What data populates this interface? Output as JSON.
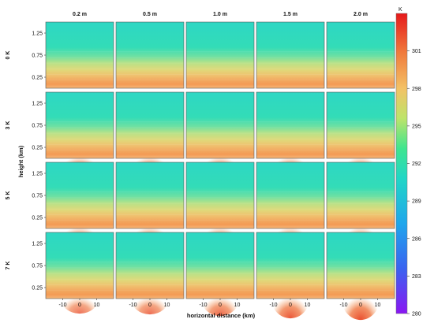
{
  "chart_data": {
    "type": "heatmap",
    "column_titles": [
      "0.2 m",
      "0.5 m",
      "1.0 m",
      "1.5 m",
      "2.0 m"
    ],
    "row_titles": [
      "0 K",
      "3 K",
      "5 K",
      "7 K"
    ],
    "ylabel": "height (km)",
    "xlabel": "horizontal distance  (km)",
    "y_ticks": [
      "1.25",
      "0.75",
      "0.25"
    ],
    "y_tick_values": [
      1.25,
      0.75,
      0.25
    ],
    "x_ticks": [
      "-10",
      "0",
      "10"
    ],
    "x_tick_values": [
      -10,
      0,
      10
    ],
    "xlim": [
      -20,
      20
    ],
    "ylim": [
      0.0,
      1.5
    ],
    "colorbar": {
      "unit": "K",
      "ticks": [
        "301",
        "298",
        "295",
        "292",
        "289",
        "286",
        "283",
        "280"
      ],
      "tick_values": [
        301,
        298,
        295,
        292,
        289,
        286,
        283,
        280
      ],
      "range": [
        280,
        304
      ],
      "colormap": "rainbow"
    },
    "field_description_by_row": {
      "0 K": "horizontally uniform; warm (~298-301 K) near surface, ~293-294 K above 0.75 km",
      "3 K": "warm surface layer with weak bumps near x=0",
      "5 K": "warm surface layer stronger near center (~301-303 K)",
      "7 K": "strongest central warm plume, deeper for larger column values"
    }
  }
}
